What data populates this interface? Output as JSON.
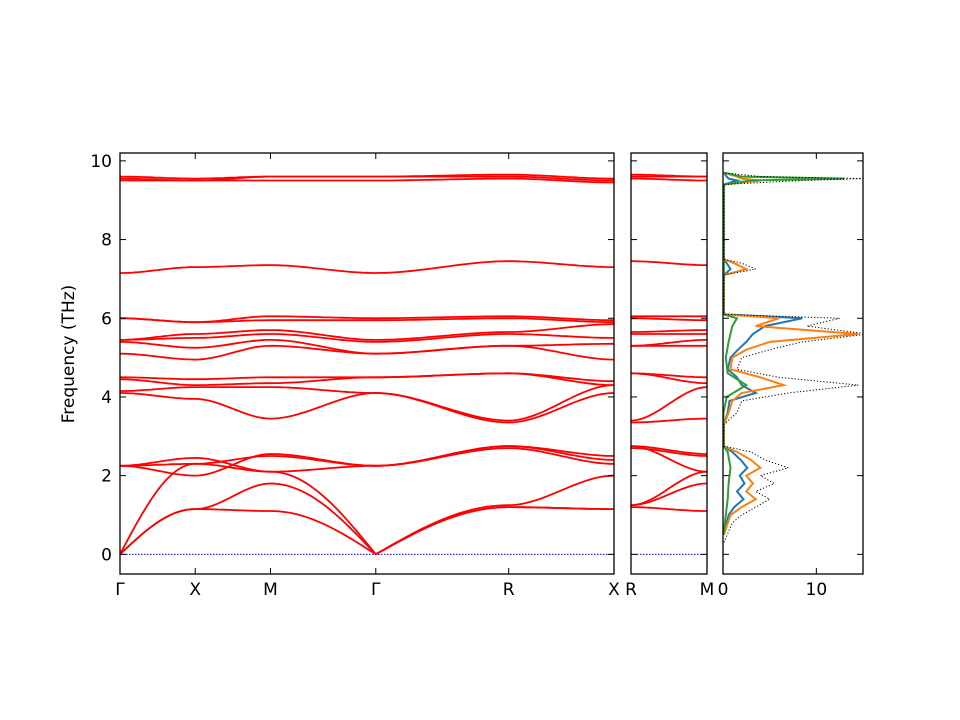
{
  "chart_data": [
    {
      "panel": "band-structure-main",
      "type": "line",
      "ylabel": "Frequency (THz)",
      "ylim": [
        -0.5,
        10.2
      ],
      "yticks": [
        0,
        2,
        4,
        6,
        8,
        10
      ],
      "x_segments": [
        [
          0.0,
          0.3
        ],
        [
          0.3,
          0.6
        ],
        [
          0.6,
          1.02
        ],
        [
          1.02,
          1.55
        ],
        [
          1.55,
          1.97
        ]
      ],
      "xticks": [
        {
          "x": 0.0,
          "label": "Γ"
        },
        {
          "x": 0.3,
          "label": "X"
        },
        {
          "x": 0.6,
          "label": "M"
        },
        {
          "x": 1.02,
          "label": "Γ"
        },
        {
          "x": 1.55,
          "label": "R"
        },
        {
          "x": 1.97,
          "label": "X"
        }
      ],
      "xlim": [
        0.0,
        1.97
      ],
      "band_color": "#ff0000",
      "zero_line_color": "#0000ff",
      "band_nodes": [
        [
          0,
          1.15,
          1.1,
          0,
          1.2,
          1.15
        ],
        [
          0,
          1.15,
          1.8,
          0,
          1.2,
          1.15
        ],
        [
          0,
          2.3,
          2.1,
          0,
          1.25,
          2.0
        ],
        [
          2.25,
          2.45,
          2.1,
          2.25,
          2.75,
          2.4
        ],
        [
          2.25,
          2.0,
          2.55,
          2.25,
          2.75,
          2.5
        ],
        [
          2.25,
          2.3,
          2.5,
          2.25,
          2.7,
          2.3
        ],
        [
          4.1,
          3.95,
          3.45,
          4.1,
          3.35,
          4.1
        ],
        [
          4.15,
          4.25,
          4.25,
          4.1,
          3.4,
          4.3
        ],
        [
          4.45,
          4.3,
          4.35,
          4.5,
          4.6,
          4.3
        ],
        [
          4.5,
          4.45,
          4.5,
          4.5,
          4.6,
          4.4
        ],
        [
          5.1,
          4.95,
          5.3,
          5.1,
          5.3,
          4.95
        ],
        [
          5.4,
          5.25,
          5.45,
          5.1,
          5.3,
          5.35
        ],
        [
          5.45,
          5.5,
          5.6,
          5.4,
          5.6,
          5.5
        ],
        [
          5.45,
          5.6,
          5.7,
          5.45,
          5.65,
          5.85
        ],
        [
          6.0,
          5.9,
          5.95,
          5.95,
          6.0,
          5.9
        ],
        [
          6.0,
          5.9,
          6.05,
          6.0,
          6.05,
          5.95
        ],
        [
          7.15,
          7.3,
          7.35,
          7.15,
          7.45,
          7.3
        ],
        [
          9.5,
          9.5,
          9.5,
          9.5,
          9.55,
          9.45
        ],
        [
          9.55,
          9.5,
          9.6,
          9.6,
          9.6,
          9.5
        ],
        [
          9.6,
          9.55,
          9.6,
          9.6,
          9.65,
          9.55
        ]
      ]
    },
    {
      "panel": "band-structure-rm",
      "type": "line",
      "ylim": [
        -0.5,
        10.2
      ],
      "xlim": [
        0.0,
        0.5
      ],
      "xticks": [
        {
          "x": 0.0,
          "label": "R"
        },
        {
          "x": 0.5,
          "label": "M"
        }
      ],
      "band_color": "#ff0000",
      "zero_line_color": "#0000ff",
      "band_nodes": [
        [
          1.2,
          1.1
        ],
        [
          1.25,
          1.8
        ],
        [
          1.25,
          2.1
        ],
        [
          2.75,
          2.1
        ],
        [
          2.75,
          2.55
        ],
        [
          2.7,
          2.5
        ],
        [
          3.35,
          3.45
        ],
        [
          3.4,
          4.25
        ],
        [
          4.6,
          4.35
        ],
        [
          4.6,
          4.5
        ],
        [
          5.3,
          5.3
        ],
        [
          5.3,
          5.45
        ],
        [
          5.6,
          5.6
        ],
        [
          5.65,
          5.7
        ],
        [
          6.0,
          5.95
        ],
        [
          6.05,
          6.05
        ],
        [
          7.45,
          7.35
        ],
        [
          9.55,
          9.5
        ],
        [
          9.6,
          9.6
        ],
        [
          9.65,
          9.6
        ]
      ]
    },
    {
      "panel": "dos",
      "type": "line",
      "xlim": [
        0,
        15
      ],
      "ylim": [
        -0.5,
        10.2
      ],
      "xticks": [
        {
          "x": 0,
          "label": "0"
        },
        {
          "x": 10,
          "label": "10"
        }
      ],
      "series": [
        {
          "color": "#1f77b4",
          "freq": [
            0.5,
            1.0,
            1.2,
            1.4,
            1.6,
            1.8,
            2.0,
            2.2,
            2.4,
            2.6,
            2.75,
            3.3,
            3.6,
            3.9,
            4.1,
            4.3,
            4.5,
            4.7,
            5.0,
            5.2,
            5.4,
            5.6,
            5.8,
            6.0,
            6.1,
            7.1,
            7.25,
            7.4,
            7.5,
            9.4,
            9.5,
            9.55,
            9.6,
            9.7
          ],
          "value": [
            0.1,
            0.6,
            1.2,
            2.2,
            1.5,
            2.3,
            1.8,
            2.6,
            1.9,
            1.0,
            0.1,
            0.1,
            0.5,
            0.7,
            3.5,
            2.0,
            1.5,
            0.5,
            0.8,
            1.6,
            2.5,
            3.2,
            4.5,
            8.5,
            0.1,
            0.1,
            0.8,
            0.4,
            0.1,
            0.1,
            1.5,
            0.6,
            0.4,
            0.1
          ]
        },
        {
          "color": "#ff7f0e",
          "freq": [
            0.5,
            1.0,
            1.2,
            1.4,
            1.6,
            1.8,
            2.0,
            2.2,
            2.4,
            2.6,
            2.75,
            3.3,
            3.6,
            3.9,
            4.1,
            4.3,
            4.5,
            4.7,
            5.0,
            5.2,
            5.4,
            5.6,
            5.8,
            6.0,
            6.1,
            7.1,
            7.25,
            7.4,
            7.5,
            9.4,
            9.5,
            9.55,
            9.6,
            9.7
          ],
          "value": [
            0.1,
            0.8,
            2.0,
            3.5,
            2.5,
            3.2,
            2.5,
            4.0,
            3.0,
            1.5,
            0.1,
            0.1,
            0.6,
            1.0,
            2.0,
            6.5,
            4.0,
            0.8,
            1.0,
            2.5,
            5.0,
            14.5,
            3.5,
            6.0,
            0.1,
            0.1,
            2.5,
            1.2,
            0.1,
            0.1,
            4.0,
            2.0,
            1.5,
            0.1
          ]
        },
        {
          "color": "#2ca02c",
          "freq": [
            0.5,
            1.0,
            1.4,
            1.8,
            2.2,
            2.6,
            2.75,
            3.6,
            4.0,
            4.3,
            4.6,
            5.0,
            5.4,
            5.8,
            6.0,
            6.1,
            7.2,
            9.4,
            9.5,
            9.55,
            9.6,
            9.7
          ],
          "value": [
            0.05,
            0.3,
            0.5,
            0.6,
            0.8,
            0.5,
            0.05,
            0.05,
            0.4,
            2.5,
            0.5,
            0.3,
            0.6,
            1.0,
            1.5,
            0.05,
            0.1,
            0.1,
            3.0,
            13.0,
            2.0,
            0.1
          ]
        },
        {
          "color": "#000000",
          "style": "dotted",
          "freq": [
            0.3,
            0.8,
            1.0,
            1.2,
            1.4,
            1.6,
            1.8,
            2.0,
            2.2,
            2.4,
            2.6,
            2.75,
            3.3,
            3.6,
            3.9,
            4.1,
            4.3,
            4.5,
            4.7,
            5.0,
            5.2,
            5.4,
            5.6,
            5.8,
            6.0,
            6.1,
            7.1,
            7.25,
            7.4,
            7.5,
            9.4,
            9.5,
            9.55,
            9.6,
            9.7
          ],
          "value": [
            0.1,
            1.0,
            2.0,
            3.5,
            5.0,
            3.5,
            5.5,
            4.0,
            7.0,
            4.5,
            3.0,
            0.1,
            0.1,
            1.5,
            2.0,
            7.0,
            14.5,
            6.0,
            1.5,
            2.0,
            5.0,
            8.5,
            15.5,
            9.0,
            12.5,
            0.1,
            0.1,
            3.5,
            2.0,
            0.1,
            0.1,
            8.5,
            15.0,
            4.0,
            0.1
          ]
        }
      ]
    }
  ]
}
